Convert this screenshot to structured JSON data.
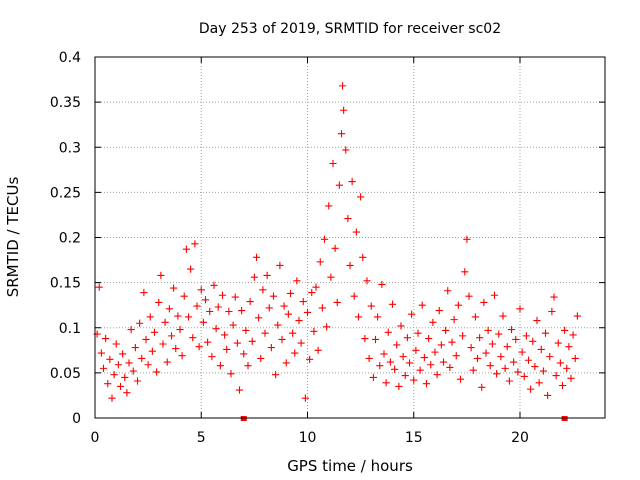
{
  "chart_data": {
    "type": "scatter",
    "title": "Day 253 of 2019, SRMTID for receiver sc02",
    "xlabel": "GPS time / hours",
    "ylabel": "SRMTID / TECUs",
    "xlim": [
      0,
      24
    ],
    "ylim": [
      0,
      0.4
    ],
    "xticks": [
      0,
      5,
      10,
      15,
      20
    ],
    "yticks": [
      0,
      0.05,
      0.1,
      0.15,
      0.2,
      0.25,
      0.3,
      0.35,
      0.4
    ],
    "xtick_labels": [
      "0",
      "5",
      "10",
      "15",
      "20"
    ],
    "ytick_labels": [
      "0",
      "0.05",
      "0.1",
      "0.15",
      "0.2",
      "0.25",
      "0.3",
      "0.35",
      "0.4"
    ],
    "grid": true,
    "marker": "+",
    "color": "#ff0000",
    "axis_markers": {
      "color": "#ff0000",
      "x": [
        7.0,
        22.1
      ]
    },
    "series": [
      {
        "name": "SRMTID",
        "points": [
          [
            0.1,
            0.093
          ],
          [
            0.2,
            0.145
          ],
          [
            0.3,
            0.072
          ],
          [
            0.4,
            0.055
          ],
          [
            0.5,
            0.088
          ],
          [
            0.6,
            0.038
          ],
          [
            0.7,
            0.065
          ],
          [
            0.8,
            0.022
          ],
          [
            0.9,
            0.048
          ],
          [
            1.0,
            0.082
          ],
          [
            1.1,
            0.059
          ],
          [
            1.2,
            0.035
          ],
          [
            1.3,
            0.071
          ],
          [
            1.4,
            0.045
          ],
          [
            1.5,
            0.028
          ],
          [
            1.6,
            0.061
          ],
          [
            1.7,
            0.098
          ],
          [
            1.8,
            0.052
          ],
          [
            1.9,
            0.078
          ],
          [
            2.0,
            0.041
          ],
          [
            2.1,
            0.105
          ],
          [
            2.2,
            0.066
          ],
          [
            2.3,
            0.139
          ],
          [
            2.4,
            0.087
          ],
          [
            2.5,
            0.059
          ],
          [
            2.6,
            0.112
          ],
          [
            2.7,
            0.074
          ],
          [
            2.8,
            0.095
          ],
          [
            2.9,
            0.051
          ],
          [
            3.0,
            0.128
          ],
          [
            3.1,
            0.158
          ],
          [
            3.2,
            0.082
          ],
          [
            3.3,
            0.106
          ],
          [
            3.4,
            0.062
          ],
          [
            3.5,
            0.121
          ],
          [
            3.6,
            0.091
          ],
          [
            3.7,
            0.144
          ],
          [
            3.8,
            0.077
          ],
          [
            3.9,
            0.113
          ],
          [
            4.0,
            0.098
          ],
          [
            4.1,
            0.069
          ],
          [
            4.2,
            0.135
          ],
          [
            4.3,
            0.187
          ],
          [
            4.4,
            0.112
          ],
          [
            4.5,
            0.165
          ],
          [
            4.6,
            0.089
          ],
          [
            4.7,
            0.193
          ],
          [
            4.8,
            0.124
          ],
          [
            4.9,
            0.079
          ],
          [
            5.0,
            0.142
          ],
          [
            5.1,
            0.106
          ],
          [
            5.2,
            0.131
          ],
          [
            5.3,
            0.084
          ],
          [
            5.4,
            0.118
          ],
          [
            5.5,
            0.068
          ],
          [
            5.6,
            0.147
          ],
          [
            5.7,
            0.099
          ],
          [
            5.8,
            0.123
          ],
          [
            5.9,
            0.058
          ],
          [
            6.0,
            0.136
          ],
          [
            6.1,
            0.092
          ],
          [
            6.2,
            0.076
          ],
          [
            6.3,
            0.118
          ],
          [
            6.4,
            0.049
          ],
          [
            6.5,
            0.103
          ],
          [
            6.6,
            0.134
          ],
          [
            6.7,
            0.083
          ],
          [
            6.8,
            0.031
          ],
          [
            6.9,
            0.119
          ],
          [
            7.0,
            0.071
          ],
          [
            7.1,
            0.097
          ],
          [
            7.2,
            0.058
          ],
          [
            7.3,
            0.129
          ],
          [
            7.4,
            0.085
          ],
          [
            7.5,
            0.156
          ],
          [
            7.6,
            0.178
          ],
          [
            7.7,
            0.111
          ],
          [
            7.8,
            0.066
          ],
          [
            7.9,
            0.142
          ],
          [
            8.0,
            0.094
          ],
          [
            8.1,
            0.158
          ],
          [
            8.2,
            0.122
          ],
          [
            8.3,
            0.078
          ],
          [
            8.4,
            0.135
          ],
          [
            8.5,
            0.048
          ],
          [
            8.6,
            0.103
          ],
          [
            8.7,
            0.169
          ],
          [
            8.8,
            0.087
          ],
          [
            8.9,
            0.124
          ],
          [
            9.0,
            0.061
          ],
          [
            9.1,
            0.115
          ],
          [
            9.2,
            0.138
          ],
          [
            9.3,
            0.094
          ],
          [
            9.4,
            0.072
          ],
          [
            9.5,
            0.152
          ],
          [
            9.6,
            0.108
          ],
          [
            9.7,
            0.083
          ],
          [
            9.8,
            0.129
          ],
          [
            9.9,
            0.022
          ],
          [
            10.0,
            0.117
          ],
          [
            10.1,
            0.065
          ],
          [
            10.2,
            0.139
          ],
          [
            10.3,
            0.096
          ],
          [
            10.4,
            0.145
          ],
          [
            10.5,
            0.075
          ],
          [
            10.6,
            0.173
          ],
          [
            10.7,
            0.122
          ],
          [
            10.8,
            0.198
          ],
          [
            10.9,
            0.101
          ],
          [
            11.0,
            0.235
          ],
          [
            11.1,
            0.156
          ],
          [
            11.2,
            0.282
          ],
          [
            11.3,
            0.188
          ],
          [
            11.4,
            0.128
          ],
          [
            11.5,
            0.258
          ],
          [
            11.6,
            0.315
          ],
          [
            11.65,
            0.368
          ],
          [
            11.7,
            0.341
          ],
          [
            11.8,
            0.297
          ],
          [
            11.9,
            0.221
          ],
          [
            12.0,
            0.169
          ],
          [
            12.1,
            0.262
          ],
          [
            12.2,
            0.135
          ],
          [
            12.3,
            0.206
          ],
          [
            12.4,
            0.112
          ],
          [
            12.5,
            0.245
          ],
          [
            12.6,
            0.178
          ],
          [
            12.7,
            0.088
          ],
          [
            12.8,
            0.152
          ],
          [
            12.9,
            0.066
          ],
          [
            13.0,
            0.124
          ],
          [
            13.1,
            0.045
          ],
          [
            13.2,
            0.087
          ],
          [
            13.3,
            0.112
          ],
          [
            13.4,
            0.058
          ],
          [
            13.5,
            0.148
          ],
          [
            13.6,
            0.071
          ],
          [
            13.7,
            0.039
          ],
          [
            13.8,
            0.095
          ],
          [
            13.9,
            0.062
          ],
          [
            14.0,
            0.126
          ],
          [
            14.1,
            0.054
          ],
          [
            14.2,
            0.081
          ],
          [
            14.3,
            0.035
          ],
          [
            14.4,
            0.102
          ],
          [
            14.5,
            0.068
          ],
          [
            14.6,
            0.047
          ],
          [
            14.7,
            0.089
          ],
          [
            14.8,
            0.061
          ],
          [
            14.9,
            0.115
          ],
          [
            15.0,
            0.042
          ],
          [
            15.1,
            0.075
          ],
          [
            15.2,
            0.094
          ],
          [
            15.3,
            0.053
          ],
          [
            15.4,
            0.125
          ],
          [
            15.5,
            0.067
          ],
          [
            15.6,
            0.038
          ],
          [
            15.7,
            0.088
          ],
          [
            15.8,
            0.059
          ],
          [
            15.9,
            0.106
          ],
          [
            16.0,
            0.073
          ],
          [
            16.1,
            0.048
          ],
          [
            16.2,
            0.119
          ],
          [
            16.3,
            0.081
          ],
          [
            16.4,
            0.062
          ],
          [
            16.5,
            0.097
          ],
          [
            16.6,
            0.141
          ],
          [
            16.7,
            0.056
          ],
          [
            16.8,
            0.084
          ],
          [
            16.9,
            0.109
          ],
          [
            17.0,
            0.069
          ],
          [
            17.1,
            0.125
          ],
          [
            17.2,
            0.043
          ],
          [
            17.3,
            0.091
          ],
          [
            17.4,
            0.162
          ],
          [
            17.5,
            0.198
          ],
          [
            17.6,
            0.135
          ],
          [
            17.7,
            0.078
          ],
          [
            17.8,
            0.053
          ],
          [
            17.9,
            0.112
          ],
          [
            18.0,
            0.066
          ],
          [
            18.1,
            0.089
          ],
          [
            18.2,
            0.034
          ],
          [
            18.3,
            0.128
          ],
          [
            18.4,
            0.072
          ],
          [
            18.5,
            0.097
          ],
          [
            18.6,
            0.058
          ],
          [
            18.7,
            0.082
          ],
          [
            18.8,
            0.136
          ],
          [
            18.9,
            0.049
          ],
          [
            19.0,
            0.093
          ],
          [
            19.1,
            0.068
          ],
          [
            19.2,
            0.113
          ],
          [
            19.3,
            0.055
          ],
          [
            19.4,
            0.079
          ],
          [
            19.5,
            0.041
          ],
          [
            19.6,
            0.098
          ],
          [
            19.7,
            0.062
          ],
          [
            19.8,
            0.087
          ],
          [
            19.9,
            0.051
          ],
          [
            20.0,
            0.121
          ],
          [
            20.1,
            0.073
          ],
          [
            20.2,
            0.046
          ],
          [
            20.3,
            0.091
          ],
          [
            20.4,
            0.064
          ],
          [
            20.5,
            0.032
          ],
          [
            20.6,
            0.085
          ],
          [
            20.7,
            0.057
          ],
          [
            20.8,
            0.108
          ],
          [
            20.9,
            0.039
          ],
          [
            21.0,
            0.076
          ],
          [
            21.1,
            0.052
          ],
          [
            21.2,
            0.094
          ],
          [
            21.3,
            0.025
          ],
          [
            21.4,
            0.068
          ],
          [
            21.5,
            0.118
          ],
          [
            21.6,
            0.134
          ],
          [
            21.7,
            0.047
          ],
          [
            21.8,
            0.083
          ],
          [
            21.9,
            0.061
          ],
          [
            22.0,
            0.036
          ],
          [
            22.1,
            0.097
          ],
          [
            22.2,
            0.055
          ],
          [
            22.3,
            0.079
          ],
          [
            22.4,
            0.044
          ],
          [
            22.5,
            0.092
          ],
          [
            22.6,
            0.066
          ],
          [
            22.7,
            0.113
          ]
        ]
      }
    ]
  }
}
